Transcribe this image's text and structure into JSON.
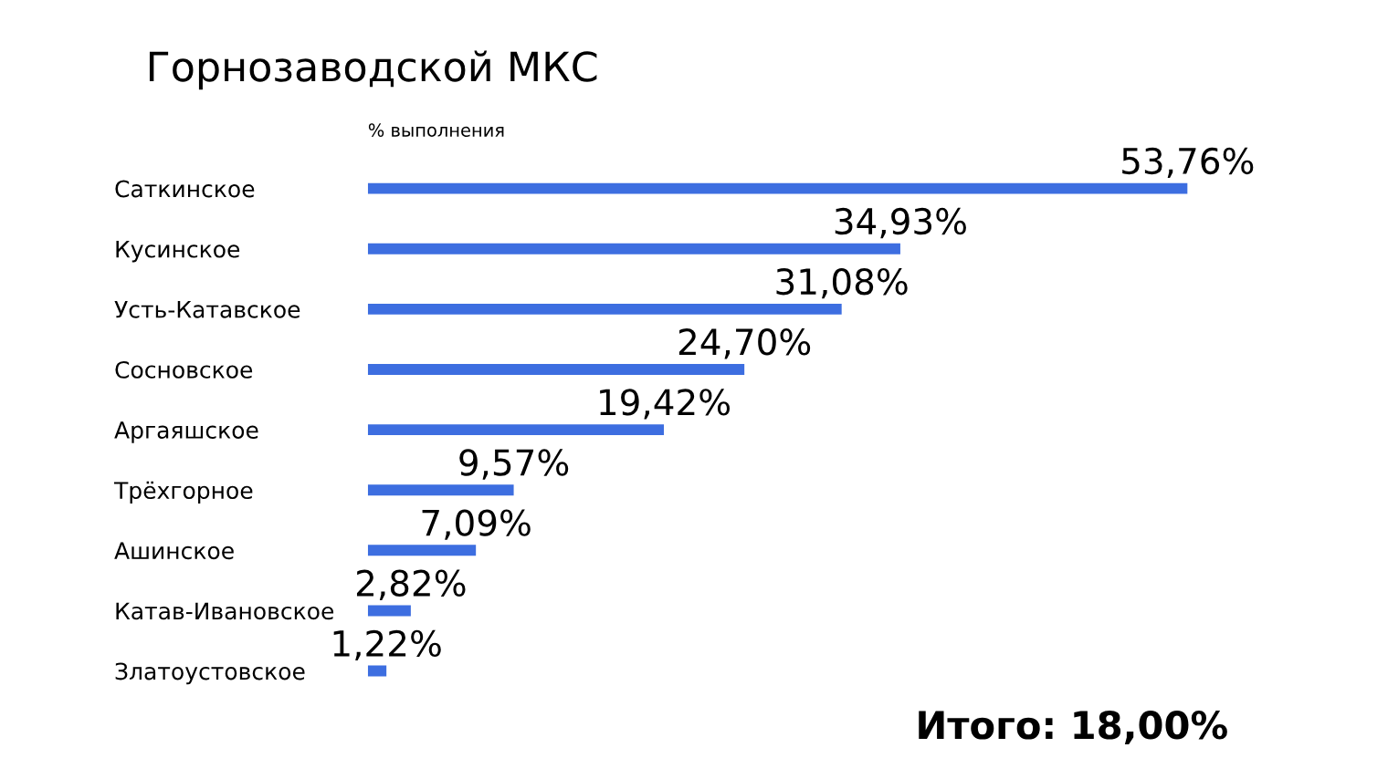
{
  "chart_data": {
    "type": "bar",
    "orientation": "horizontal",
    "title": "Горнозаводской МКС",
    "subtitle": "% выполнения",
    "categories": [
      "Саткинское",
      "Кусинское",
      "Усть-Катавское",
      "Сосновское",
      "Аргаяшское",
      "Трёхгорное",
      "Ашинское",
      "Катав-Ивановское",
      "Златоустовское"
    ],
    "values": [
      53.76,
      34.93,
      31.08,
      24.7,
      19.42,
      9.57,
      7.09,
      2.82,
      1.22
    ],
    "value_labels": [
      "53,76%",
      "34,93%",
      "31,08%",
      "24,70%",
      "19,42%",
      "9,57%",
      "7,09%",
      "2,82%",
      "1,22%"
    ],
    "color": "#3d6ee0",
    "grid": false,
    "legend": false,
    "tick_labels": "y",
    "annotations": [
      "Итого: 18,00%"
    ]
  }
}
